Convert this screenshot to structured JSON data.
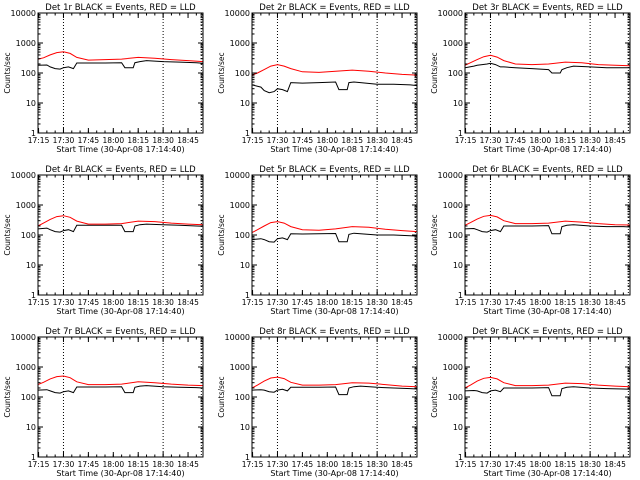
{
  "page": {
    "start_time_label": "Start Time (30-Apr-08 17:14:40)",
    "y_axis_label": "Counts/sec",
    "y_ticks": [
      "1",
      "10",
      "100",
      "1000",
      "10000"
    ],
    "x_ticks": [
      "17:15",
      "17:30",
      "17:45",
      "18:00",
      "18:15",
      "18:30",
      "18:45"
    ],
    "colors": {
      "events": "#000000",
      "lld": "#ff0000",
      "marker": "#000000"
    }
  },
  "chart_data": [
    {
      "type": "line",
      "title": "Det 1r BLACK = Events, RED = LLD",
      "xlabel": "Start Time (30-Apr-08 17:14:40)",
      "ylabel": "Counts/sec",
      "x_range": [
        "17:14:40",
        "18:54"
      ],
      "ylim": [
        1,
        10000
      ],
      "log_y": true,
      "marker_times": [
        "17:30",
        "18:30",
        "18:53"
      ],
      "series": [
        {
          "name": "Events",
          "color": "#000000",
          "x": [
            "17:14:40",
            "17:20",
            "17:22",
            "17:25",
            "17:28",
            "17:30",
            "17:33",
            "17:36",
            "17:38",
            "17:45",
            "17:55",
            "18:05",
            "18:07",
            "18:12",
            "18:13",
            "18:16",
            "18:20",
            "18:30",
            "18:40",
            "18:50",
            "18:54"
          ],
          "values": [
            180,
            185,
            160,
            140,
            135,
            150,
            160,
            140,
            215,
            215,
            215,
            220,
            150,
            150,
            220,
            240,
            260,
            240,
            230,
            220,
            210
          ]
        },
        {
          "name": "LLD",
          "color": "#ff0000",
          "x": [
            "17:14:40",
            "17:18",
            "17:22",
            "17:26",
            "17:30",
            "17:34",
            "17:38",
            "17:45",
            "17:55",
            "18:05",
            "18:15",
            "18:25",
            "18:35",
            "18:45",
            "18:54"
          ],
          "values": [
            290,
            320,
            400,
            480,
            510,
            450,
            330,
            270,
            280,
            290,
            330,
            310,
            280,
            260,
            240
          ]
        }
      ]
    },
    {
      "type": "line",
      "title": "Det 2r BLACK = Events, RED = LLD",
      "xlabel": "Start Time (30-Apr-08 17:14:40)",
      "ylabel": "Counts/sec",
      "x_range": [
        "17:14:40",
        "18:54"
      ],
      "ylim": [
        1,
        10000
      ],
      "log_y": true,
      "marker_times": [
        "17:30",
        "18:30",
        "18:53"
      ],
      "series": [
        {
          "name": "Events",
          "color": "#000000",
          "x": [
            "17:14:40",
            "17:20",
            "17:22",
            "17:25",
            "17:28",
            "17:30",
            "17:33",
            "17:36",
            "17:38",
            "17:45",
            "17:55",
            "18:05",
            "18:07",
            "18:12",
            "18:13",
            "18:16",
            "18:20",
            "18:30",
            "18:40",
            "18:50",
            "18:54"
          ],
          "values": [
            40,
            34,
            26,
            22,
            24,
            30,
            28,
            24,
            48,
            46,
            48,
            50,
            28,
            28,
            48,
            50,
            48,
            42,
            42,
            40,
            38
          ]
        },
        {
          "name": "LLD",
          "color": "#ff0000",
          "x": [
            "17:14:40",
            "17:18",
            "17:22",
            "17:26",
            "17:30",
            "17:34",
            "17:38",
            "17:45",
            "17:55",
            "18:05",
            "18:15",
            "18:25",
            "18:35",
            "18:45",
            "18:54"
          ],
          "values": [
            85,
            100,
            130,
            170,
            190,
            170,
            140,
            110,
            105,
            115,
            125,
            115,
            100,
            90,
            85
          ]
        }
      ]
    },
    {
      "type": "line",
      "title": "Det 3r BLACK = Events, RED = LLD",
      "xlabel": "Start Time (30-Apr-08 17:14:40)",
      "ylabel": "Counts/sec",
      "x_range": [
        "17:14:40",
        "18:54"
      ],
      "ylim": [
        1,
        10000
      ],
      "log_y": true,
      "marker_times": [
        "17:30",
        "18:30",
        "18:53"
      ],
      "series": [
        {
          "name": "Events",
          "color": "#000000",
          "x": [
            "17:14:40",
            "17:20",
            "17:22",
            "17:25",
            "17:28",
            "17:30",
            "17:33",
            "17:36",
            "17:38",
            "17:45",
            "17:55",
            "18:05",
            "18:07",
            "18:12",
            "18:13",
            "18:16",
            "18:20",
            "18:30",
            "18:40",
            "18:50",
            "18:54"
          ],
          "values": [
            150,
            170,
            180,
            190,
            200,
            210,
            190,
            160,
            160,
            150,
            140,
            130,
            100,
            100,
            130,
            150,
            170,
            160,
            150,
            150,
            150
          ]
        },
        {
          "name": "LLD",
          "color": "#ff0000",
          "x": [
            "17:14:40",
            "17:18",
            "17:22",
            "17:26",
            "17:30",
            "17:34",
            "17:38",
            "17:45",
            "17:55",
            "18:05",
            "18:15",
            "18:25",
            "18:35",
            "18:45",
            "18:54"
          ],
          "values": [
            180,
            220,
            280,
            350,
            390,
            340,
            260,
            200,
            190,
            200,
            230,
            220,
            190,
            180,
            175
          ]
        }
      ]
    },
    {
      "type": "line",
      "title": "Det 4r BLACK = Events, RED = LLD",
      "xlabel": "Start Time (30-Apr-08 17:14:40)",
      "ylabel": "Counts/sec",
      "x_range": [
        "17:14:40",
        "18:54"
      ],
      "ylim": [
        1,
        10000
      ],
      "log_y": true,
      "marker_times": [
        "17:30",
        "18:30",
        "18:53"
      ],
      "series": [
        {
          "name": "Events",
          "color": "#000000",
          "x": [
            "17:14:40",
            "17:20",
            "17:22",
            "17:25",
            "17:28",
            "17:30",
            "17:33",
            "17:36",
            "17:38",
            "17:45",
            "17:55",
            "18:05",
            "18:07",
            "18:12",
            "18:13",
            "18:16",
            "18:20",
            "18:30",
            "18:40",
            "18:50",
            "18:54"
          ],
          "values": [
            160,
            170,
            150,
            130,
            125,
            140,
            150,
            130,
            210,
            210,
            210,
            210,
            130,
            130,
            200,
            220,
            230,
            220,
            210,
            200,
            195
          ]
        },
        {
          "name": "LLD",
          "color": "#ff0000",
          "x": [
            "17:14:40",
            "17:18",
            "17:22",
            "17:26",
            "17:30",
            "17:34",
            "17:38",
            "17:45",
            "17:55",
            "18:05",
            "18:15",
            "18:25",
            "18:35",
            "18:45",
            "18:54"
          ],
          "values": [
            200,
            250,
            330,
            410,
            440,
            390,
            290,
            230,
            230,
            240,
            290,
            280,
            250,
            230,
            220
          ]
        }
      ]
    },
    {
      "type": "line",
      "title": "Det 5r BLACK = Events, RED = LLD",
      "xlabel": "Start Time (30-Apr-08 17:14:40)",
      "ylabel": "Counts/sec",
      "x_range": [
        "17:14:40",
        "18:54"
      ],
      "ylim": [
        1,
        10000
      ],
      "log_y": true,
      "marker_times": [
        "17:30",
        "18:30",
        "18:53"
      ],
      "series": [
        {
          "name": "Events",
          "color": "#000000",
          "x": [
            "17:14:40",
            "17:20",
            "17:22",
            "17:25",
            "17:28",
            "17:30",
            "17:33",
            "17:36",
            "17:38",
            "17:45",
            "17:55",
            "18:05",
            "18:07",
            "18:12",
            "18:13",
            "18:16",
            "18:20",
            "18:30",
            "18:40",
            "18:50",
            "18:54"
          ],
          "values": [
            70,
            75,
            70,
            60,
            58,
            75,
            80,
            70,
            110,
            108,
            110,
            112,
            60,
            60,
            105,
            115,
            110,
            100,
            100,
            95,
            92
          ]
        },
        {
          "name": "LLD",
          "color": "#ff0000",
          "x": [
            "17:14:40",
            "17:18",
            "17:22",
            "17:26",
            "17:30",
            "17:34",
            "17:38",
            "17:45",
            "17:55",
            "18:05",
            "18:15",
            "18:25",
            "18:35",
            "18:45",
            "18:54"
          ],
          "values": [
            120,
            150,
            200,
            260,
            280,
            250,
            190,
            150,
            145,
            160,
            190,
            180,
            155,
            140,
            130
          ]
        }
      ]
    },
    {
      "type": "line",
      "title": "Det 6r BLACK = Events, RED = LLD",
      "xlabel": "Start Time (30-Apr-08 17:14:40)",
      "ylabel": "Counts/sec",
      "x_range": [
        "17:14:40",
        "18:54"
      ],
      "ylim": [
        1,
        10000
      ],
      "log_y": true,
      "marker_times": [
        "17:30",
        "18:30",
        "18:53"
      ],
      "series": [
        {
          "name": "Events",
          "color": "#000000",
          "x": [
            "17:14:40",
            "17:20",
            "17:22",
            "17:25",
            "17:28",
            "17:30",
            "17:33",
            "17:36",
            "17:38",
            "17:45",
            "17:55",
            "18:05",
            "18:07",
            "18:12",
            "18:13",
            "18:16",
            "18:20",
            "18:30",
            "18:40",
            "18:50",
            "18:54"
          ],
          "values": [
            160,
            165,
            150,
            130,
            125,
            140,
            150,
            130,
            200,
            200,
            200,
            205,
            110,
            110,
            190,
            210,
            220,
            200,
            190,
            190,
            185
          ]
        },
        {
          "name": "LLD",
          "color": "#ff0000",
          "x": [
            "17:14:40",
            "17:18",
            "17:22",
            "17:26",
            "17:30",
            "17:34",
            "17:38",
            "17:45",
            "17:55",
            "18:05",
            "18:15",
            "18:25",
            "18:35",
            "18:45",
            "18:54"
          ],
          "values": [
            210,
            260,
            340,
            420,
            450,
            400,
            300,
            240,
            240,
            250,
            290,
            270,
            240,
            220,
            215
          ]
        }
      ]
    },
    {
      "type": "line",
      "title": "Det 7r BLACK = Events, RED = LLD",
      "xlabel": "Start Time (30-Apr-08 17:14:40)",
      "ylabel": "Counts/sec",
      "x_range": [
        "17:14:40",
        "18:54"
      ],
      "ylim": [
        1,
        10000
      ],
      "log_y": true,
      "marker_times": [
        "17:30",
        "18:30",
        "18:53"
      ],
      "series": [
        {
          "name": "Events",
          "color": "#000000",
          "x": [
            "17:14:40",
            "17:20",
            "17:22",
            "17:25",
            "17:28",
            "17:30",
            "17:33",
            "17:36",
            "17:38",
            "17:45",
            "17:55",
            "18:05",
            "18:07",
            "18:12",
            "18:13",
            "18:16",
            "18:20",
            "18:30",
            "18:40",
            "18:50",
            "18:54"
          ],
          "values": [
            170,
            175,
            160,
            140,
            135,
            150,
            160,
            140,
            215,
            215,
            215,
            220,
            140,
            140,
            210,
            230,
            240,
            220,
            210,
            205,
            200
          ]
        },
        {
          "name": "LLD",
          "color": "#ff0000",
          "x": [
            "17:14:40",
            "17:18",
            "17:22",
            "17:26",
            "17:30",
            "17:34",
            "17:38",
            "17:45",
            "17:55",
            "18:05",
            "18:15",
            "18:25",
            "18:35",
            "18:45",
            "18:54"
          ],
          "values": [
            260,
            310,
            400,
            480,
            500,
            440,
            320,
            260,
            260,
            270,
            320,
            300,
            270,
            250,
            240
          ]
        }
      ]
    },
    {
      "type": "line",
      "title": "Det 8r BLACK = Events, RED = LLD",
      "xlabel": "Start Time (30-Apr-08 17:14:40)",
      "ylabel": "Counts/sec",
      "x_range": [
        "17:14:40",
        "18:54"
      ],
      "ylim": [
        1,
        10000
      ],
      "log_y": true,
      "marker_times": [
        "17:30",
        "18:30",
        "18:53"
      ],
      "series": [
        {
          "name": "Events",
          "color": "#000000",
          "x": [
            "17:14:40",
            "17:20",
            "17:22",
            "17:25",
            "17:28",
            "17:30",
            "17:33",
            "17:36",
            "17:38",
            "17:45",
            "17:55",
            "18:05",
            "18:07",
            "18:12",
            "18:13",
            "18:16",
            "18:20",
            "18:30",
            "18:40",
            "18:50",
            "18:54"
          ],
          "values": [
            170,
            175,
            170,
            150,
            145,
            170,
            180,
            160,
            210,
            210,
            210,
            215,
            120,
            120,
            200,
            220,
            230,
            210,
            200,
            190,
            185
          ]
        },
        {
          "name": "LLD",
          "color": "#ff0000",
          "x": [
            "17:14:40",
            "17:18",
            "17:22",
            "17:26",
            "17:30",
            "17:34",
            "17:38",
            "17:45",
            "17:55",
            "18:05",
            "18:15",
            "18:25",
            "18:35",
            "18:45",
            "18:54"
          ],
          "values": [
            200,
            250,
            340,
            430,
            460,
            410,
            310,
            250,
            250,
            260,
            300,
            290,
            260,
            230,
            220
          ]
        }
      ]
    },
    {
      "type": "line",
      "title": "Det 9r BLACK = Events, RED = LLD",
      "xlabel": "Start Time (30-Apr-08 17:14:40)",
      "ylabel": "Counts/sec",
      "x_range": [
        "17:14:40",
        "18:54"
      ],
      "ylim": [
        1,
        10000
      ],
      "log_y": true,
      "marker_times": [
        "17:30",
        "18:30",
        "18:53"
      ],
      "series": [
        {
          "name": "Events",
          "color": "#000000",
          "x": [
            "17:14:40",
            "17:20",
            "17:22",
            "17:25",
            "17:28",
            "17:30",
            "17:33",
            "17:36",
            "17:38",
            "17:45",
            "17:55",
            "18:05",
            "18:07",
            "18:12",
            "18:13",
            "18:16",
            "18:20",
            "18:30",
            "18:40",
            "18:50",
            "18:54"
          ],
          "values": [
            160,
            165,
            160,
            140,
            135,
            160,
            170,
            150,
            200,
            200,
            200,
            205,
            110,
            110,
            190,
            210,
            220,
            200,
            190,
            185,
            180
          ]
        },
        {
          "name": "LLD",
          "color": "#ff0000",
          "x": [
            "17:14:40",
            "17:18",
            "17:22",
            "17:26",
            "17:30",
            "17:34",
            "17:38",
            "17:45",
            "17:55",
            "18:05",
            "18:15",
            "18:25",
            "18:35",
            "18:45",
            "18:54"
          ],
          "values": [
            200,
            250,
            340,
            420,
            450,
            400,
            300,
            240,
            240,
            250,
            290,
            280,
            250,
            230,
            220
          ]
        }
      ]
    }
  ]
}
